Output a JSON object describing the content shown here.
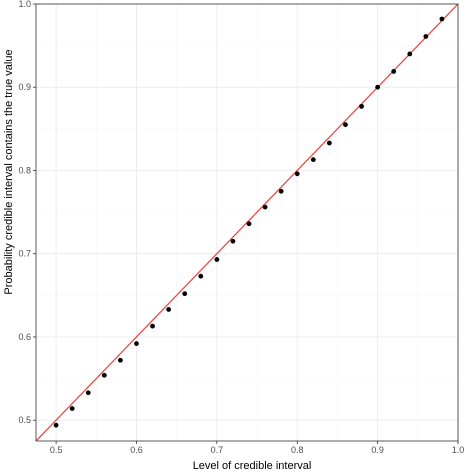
{
  "chart_data": {
    "type": "scatter",
    "xlabel": "Level of credible interval",
    "ylabel": "Probability credible interval contains the true value",
    "xlim": [
      0.475,
      1.0
    ],
    "ylim": [
      0.475,
      1.0
    ],
    "xticks": [
      0.5,
      0.6,
      0.7,
      0.8,
      0.9,
      1.0
    ],
    "yticks": [
      0.5,
      0.6,
      0.7,
      0.8,
      0.9,
      1.0
    ],
    "xtick_labels": [
      "0.5",
      "0.6",
      "0.7",
      "0.8",
      "0.9",
      "1.0"
    ],
    "ytick_labels": [
      "0.5",
      "0.6",
      "0.7",
      "0.8",
      "0.9",
      "1.0"
    ],
    "grid": true,
    "reference_line": {
      "slope": 1,
      "intercept": 0,
      "color": "#e8413a"
    },
    "point_color": "#000000",
    "points": [
      {
        "x": 0.5,
        "y": 0.494
      },
      {
        "x": 0.52,
        "y": 0.514
      },
      {
        "x": 0.54,
        "y": 0.533
      },
      {
        "x": 0.56,
        "y": 0.554
      },
      {
        "x": 0.58,
        "y": 0.572
      },
      {
        "x": 0.6,
        "y": 0.592
      },
      {
        "x": 0.62,
        "y": 0.613
      },
      {
        "x": 0.64,
        "y": 0.633
      },
      {
        "x": 0.66,
        "y": 0.652
      },
      {
        "x": 0.68,
        "y": 0.673
      },
      {
        "x": 0.7,
        "y": 0.693
      },
      {
        "x": 0.72,
        "y": 0.715
      },
      {
        "x": 0.74,
        "y": 0.736
      },
      {
        "x": 0.76,
        "y": 0.756
      },
      {
        "x": 0.78,
        "y": 0.775
      },
      {
        "x": 0.8,
        "y": 0.796
      },
      {
        "x": 0.82,
        "y": 0.813
      },
      {
        "x": 0.84,
        "y": 0.833
      },
      {
        "x": 0.86,
        "y": 0.855
      },
      {
        "x": 0.88,
        "y": 0.877
      },
      {
        "x": 0.9,
        "y": 0.9
      },
      {
        "x": 0.92,
        "y": 0.919
      },
      {
        "x": 0.94,
        "y": 0.94
      },
      {
        "x": 0.96,
        "y": 0.961
      },
      {
        "x": 0.98,
        "y": 0.982
      }
    ]
  }
}
